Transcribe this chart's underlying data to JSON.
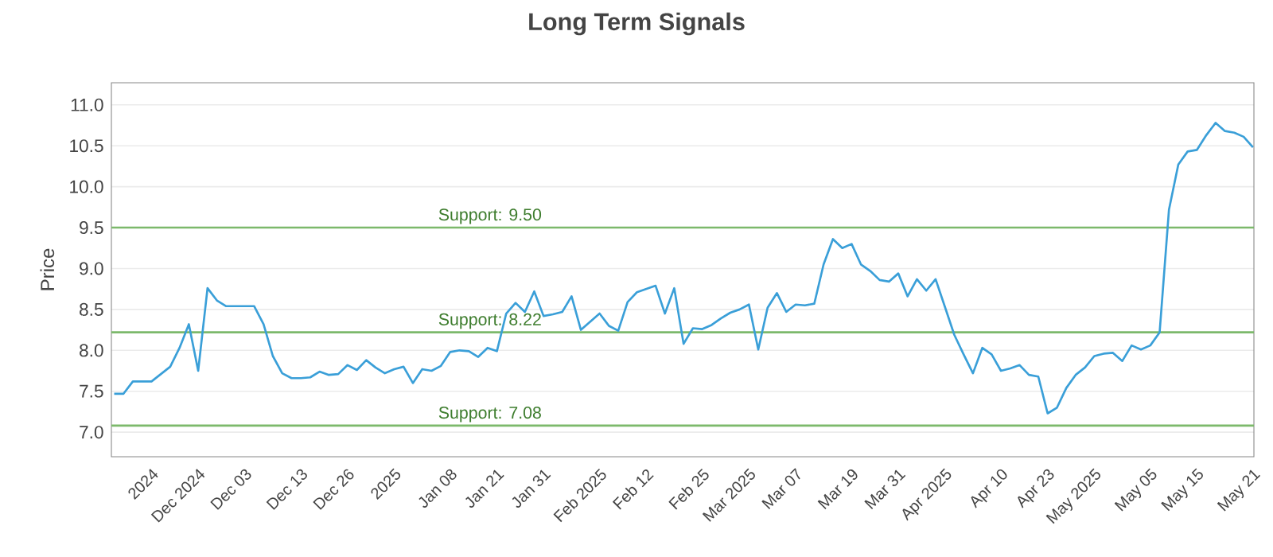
{
  "chart_data": {
    "type": "line",
    "title": "Long Term Signals",
    "ylabel": "Price",
    "categories": [
      null,
      null,
      null,
      null,
      "2024",
      null,
      null,
      null,
      null,
      "Dec 2024",
      null,
      null,
      null,
      null,
      "Dec 03",
      null,
      null,
      null,
      null,
      null,
      "Dec 13",
      null,
      null,
      null,
      null,
      "Dec 26",
      null,
      null,
      null,
      null,
      "2025",
      null,
      null,
      null,
      null,
      null,
      "Jan 08",
      null,
      null,
      null,
      null,
      "Jan 21",
      null,
      null,
      null,
      null,
      "Jan 31",
      null,
      null,
      null,
      null,
      null,
      "Feb 2025",
      null,
      null,
      null,
      null,
      "Feb 12",
      null,
      null,
      null,
      null,
      null,
      "Feb 25",
      null,
      null,
      null,
      null,
      "Mar 2025",
      null,
      null,
      null,
      null,
      "Mar 07",
      null,
      null,
      null,
      null,
      null,
      "Mar 19",
      null,
      null,
      null,
      null,
      "Mar 31",
      null,
      null,
      null,
      null,
      "Apr 2025",
      null,
      null,
      null,
      null,
      null,
      "Apr 10",
      null,
      null,
      null,
      null,
      "Apr 23",
      null,
      null,
      null,
      null,
      "May 2025",
      null,
      null,
      null,
      null,
      null,
      "May 05",
      null,
      null,
      null,
      null,
      "May 15",
      null,
      null,
      null,
      null,
      null,
      "May 21"
    ],
    "series": [
      {
        "color": "#3a9fd8",
        "values": [
          7.47,
          7.47,
          7.62,
          7.62,
          7.62,
          7.71,
          7.8,
          8.03,
          8.32,
          7.75,
          8.76,
          8.61,
          8.54,
          8.54,
          8.54,
          8.54,
          8.32,
          7.93,
          7.72,
          7.66,
          7.66,
          7.67,
          7.74,
          7.7,
          7.71,
          7.82,
          7.76,
          7.88,
          7.79,
          7.72,
          7.77,
          7.8,
          7.6,
          7.77,
          7.75,
          7.81,
          7.98,
          8.0,
          7.99,
          7.92,
          8.03,
          7.99,
          8.45,
          8.58,
          8.47,
          8.72,
          8.42,
          8.44,
          8.47,
          8.66,
          8.25,
          8.35,
          8.45,
          8.3,
          8.24,
          8.59,
          8.71,
          8.75,
          8.79,
          8.45,
          8.76,
          8.08,
          8.27,
          8.26,
          8.31,
          8.39,
          8.46,
          8.5,
          8.56,
          8.01,
          8.52,
          8.7,
          8.47,
          8.56,
          8.55,
          8.57,
          9.05,
          9.36,
          9.25,
          9.3,
          9.05,
          8.97,
          8.86,
          8.84,
          8.94,
          8.66,
          8.87,
          8.73,
          8.87,
          8.53,
          8.19,
          7.95,
          7.72,
          8.03,
          7.95,
          7.75,
          7.78,
          7.82,
          7.7,
          7.68,
          7.23,
          7.3,
          7.54,
          7.7,
          7.79,
          7.93,
          7.96,
          7.97,
          7.87,
          8.06,
          8.01,
          8.06,
          8.22,
          9.72,
          10.27,
          10.43,
          10.45,
          10.63,
          10.78,
          10.68,
          10.66,
          10.61,
          10.48
        ]
      }
    ],
    "ylim": [
      6.7,
      11.27
    ],
    "yticks": [
      {
        "value": 7,
        "label": "7.0"
      },
      7.5,
      {
        "value": 8,
        "label": "8.0"
      },
      8.5,
      {
        "value": 9,
        "label": "9.0"
      },
      9.5,
      {
        "value": 10,
        "label": "10.0"
      },
      10.5,
      {
        "value": 11,
        "label": "11.0"
      }
    ],
    "grid": "y",
    "marker": "none",
    "line_style": "solid",
    "ref_lines": [
      {
        "axis": "y",
        "value": 9.5,
        "label": "Support: 9.50",
        "color": "#7cb96b"
      },
      {
        "axis": "y",
        "value": 8.22,
        "label": "Support: 8.22",
        "color": "#7cb96b"
      },
      {
        "axis": "y",
        "value": 7.08,
        "label": "Support: 7.08",
        "color": "#7cb96b"
      }
    ]
  }
}
